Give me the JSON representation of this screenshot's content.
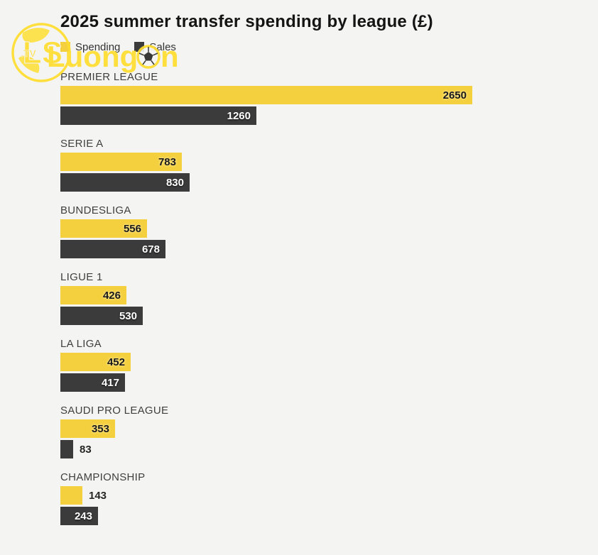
{
  "title": "2025 summer transfer spending by league (£)",
  "legend": {
    "spending": "Spending",
    "sales": "Sales"
  },
  "watermark": {
    "brand_prefix": "LuongS",
    "brand_suffix": "n",
    "monogram": "LS",
    "tld": ".TV"
  },
  "colors": {
    "spending": "#F4D03F",
    "sales": "#3B3B3B",
    "background": "#F4F4F3",
    "title_text": "#141414",
    "category_text": "#3F3F3F",
    "watermark_yellow": "#FFDE2E"
  },
  "chart_data": {
    "type": "bar",
    "orientation": "horizontal",
    "title": "2025 summer transfer spending by league (£)",
    "categories": [
      "PREMIER LEAGUE",
      "SERIE A",
      "BUNDESLIGA",
      "LIGUE 1",
      "LA LIGA",
      "SAUDI PRO LEAGUE",
      "CHAMPIONSHIP"
    ],
    "series": [
      {
        "name": "Spending",
        "color": "#F4D03F",
        "values": [
          2650,
          783,
          556,
          426,
          452,
          353,
          143
        ]
      },
      {
        "name": "Sales",
        "color": "#3B3B3B",
        "values": [
          1260,
          830,
          678,
          530,
          417,
          83,
          243
        ]
      }
    ],
    "xlim": [
      0,
      2650
    ],
    "value_labels": true,
    "legend_position": "top-left",
    "grid": false
  }
}
